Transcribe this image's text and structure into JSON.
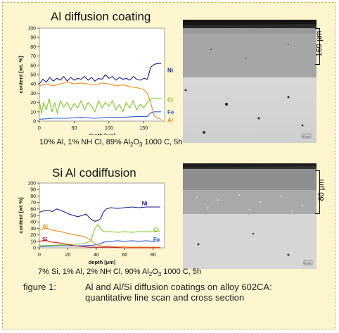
{
  "panels": [
    {
      "title": "Al diffusion coating",
      "caption": {
        "before": "10% Al, 1% NH Cl, 89% Al",
        "sub1": "2",
        "mid": "O",
        "sub2": "3",
        "after": " 1000 C, 5h"
      },
      "micrograph": {
        "thickness_label": "160 µm",
        "scale_label": "50 µm"
      },
      "chart_data": {
        "type": "line",
        "xlabel": "depth [µm]",
        "ylabel": "content [wt. %]",
        "xlim": [
          0,
          180
        ],
        "ylim": [
          0,
          100
        ],
        "x_ticks": [
          0,
          50,
          100,
          150
        ],
        "y_ticks": [
          0,
          10,
          20,
          30,
          40,
          50,
          60,
          70,
          80,
          90,
          100
        ],
        "series": [
          {
            "name": "Ni",
            "color": "#1a1a8c",
            "points": [
              [
                0,
                40
              ],
              [
                5,
                45
              ],
              [
                10,
                42
              ],
              [
                15,
                47
              ],
              [
                20,
                43
              ],
              [
                25,
                46
              ],
              [
                30,
                44
              ],
              [
                35,
                48
              ],
              [
                40,
                43
              ],
              [
                45,
                47
              ],
              [
                50,
                44
              ],
              [
                55,
                46
              ],
              [
                60,
                45
              ],
              [
                65,
                48
              ],
              [
                70,
                44
              ],
              [
                75,
                47
              ],
              [
                80,
                43
              ],
              [
                85,
                46
              ],
              [
                90,
                45
              ],
              [
                95,
                50
              ],
              [
                100,
                46
              ],
              [
                105,
                48
              ],
              [
                110,
                44
              ],
              [
                115,
                47
              ],
              [
                120,
                45
              ],
              [
                125,
                46
              ],
              [
                130,
                44
              ],
              [
                135,
                48
              ],
              [
                140,
                45
              ],
              [
                145,
                44
              ],
              [
                150,
                46
              ],
              [
                155,
                45
              ],
              [
                158,
                52
              ],
              [
                160,
                58
              ],
              [
                165,
                61
              ],
              [
                170,
                62
              ],
              [
                175,
                62
              ]
            ]
          },
          {
            "name": "Cr",
            "color": "#7ec820",
            "points": [
              [
                0,
                22
              ],
              [
                3,
                8
              ],
              [
                6,
                20
              ],
              [
                10,
                12
              ],
              [
                14,
                24
              ],
              [
                18,
                10
              ],
              [
                22,
                20
              ],
              [
                26,
                8
              ],
              [
                30,
                22
              ],
              [
                35,
                15
              ],
              [
                40,
                20
              ],
              [
                45,
                12
              ],
              [
                50,
                19
              ],
              [
                55,
                14
              ],
              [
                60,
                22
              ],
              [
                65,
                12
              ],
              [
                70,
                20
              ],
              [
                75,
                16
              ],
              [
                80,
                10
              ],
              [
                85,
                22
              ],
              [
                90,
                14
              ],
              [
                95,
                20
              ],
              [
                100,
                16
              ],
              [
                105,
                22
              ],
              [
                110,
                12
              ],
              [
                115,
                18
              ],
              [
                120,
                10
              ],
              [
                125,
                20
              ],
              [
                130,
                14
              ],
              [
                135,
                22
              ],
              [
                140,
                12
              ],
              [
                145,
                18
              ],
              [
                150,
                14
              ],
              [
                155,
                20
              ],
              [
                160,
                24
              ],
              [
                165,
                25
              ],
              [
                170,
                24
              ],
              [
                175,
                25
              ]
            ]
          },
          {
            "name": "Fe",
            "color": "#2f5fd0",
            "points": [
              [
                0,
                2
              ],
              [
                20,
                3
              ],
              [
                40,
                3
              ],
              [
                60,
                4
              ],
              [
                80,
                3
              ],
              [
                100,
                4
              ],
              [
                120,
                4
              ],
              [
                140,
                5
              ],
              [
                155,
                5
              ],
              [
                160,
                9
              ],
              [
                165,
                10
              ],
              [
                170,
                10
              ],
              [
                175,
                10
              ]
            ]
          },
          {
            "name": "Al",
            "color": "#f08a1c",
            "points": [
              [
                0,
                38
              ],
              [
                10,
                40
              ],
              [
                20,
                38
              ],
              [
                30,
                40
              ],
              [
                40,
                42
              ],
              [
                50,
                40
              ],
              [
                60,
                41
              ],
              [
                70,
                40
              ],
              [
                80,
                39
              ],
              [
                90,
                41
              ],
              [
                100,
                40
              ],
              [
                110,
                38
              ],
              [
                120,
                39
              ],
              [
                130,
                37
              ],
              [
                140,
                36
              ],
              [
                150,
                34
              ],
              [
                155,
                30
              ],
              [
                160,
                20
              ],
              [
                165,
                6
              ],
              [
                170,
                3
              ],
              [
                175,
                2
              ]
            ]
          }
        ]
      }
    },
    {
      "title": "Si Al codiffusion",
      "caption": {
        "before": "7% Si, 1% Al, 2% NH Cl, 90% Al",
        "sub1": "2",
        "mid": "O",
        "sub2": "3",
        "after": " 1000 C, 5h"
      },
      "micrograph": {
        "thickness_label": "80 µm",
        "scale_label": "20 µm"
      },
      "chart_data": {
        "type": "line",
        "xlabel": "depth [µm]",
        "ylabel": "content [wt %]",
        "xlim": [
          0,
          88
        ],
        "ylim": [
          0,
          100
        ],
        "x_ticks": [
          0,
          20,
          40,
          60,
          80
        ],
        "y_ticks": [
          0,
          10,
          20,
          30,
          40,
          50,
          60,
          70,
          80,
          90,
          100
        ],
        "series": [
          {
            "name": "Ni",
            "color": "#1a1a8c",
            "points": [
              [
                0,
                55
              ],
              [
                3,
                57
              ],
              [
                6,
                58
              ],
              [
                9,
                56
              ],
              [
                12,
                60
              ],
              [
                15,
                58
              ],
              [
                18,
                55
              ],
              [
                21,
                52
              ],
              [
                24,
                50
              ],
              [
                27,
                48
              ],
              [
                30,
                50
              ],
              [
                33,
                52
              ],
              [
                35,
                47
              ],
              [
                37,
                43
              ],
              [
                39,
                41
              ],
              [
                41,
                42
              ],
              [
                43,
                45
              ],
              [
                45,
                55
              ],
              [
                47,
                60
              ],
              [
                50,
                62
              ],
              [
                55,
                61
              ],
              [
                60,
                62
              ],
              [
                65,
                63
              ],
              [
                70,
                62
              ],
              [
                75,
                63
              ],
              [
                80,
                63
              ],
              [
                85,
                63
              ]
            ]
          },
          {
            "name": "Cr",
            "color": "#7ec820",
            "points": [
              [
                0,
                3
              ],
              [
                10,
                4
              ],
              [
                20,
                5
              ],
              [
                30,
                6
              ],
              [
                36,
                10
              ],
              [
                39,
                30
              ],
              [
                41,
                36
              ],
              [
                43,
                30
              ],
              [
                45,
                25
              ],
              [
                50,
                25
              ],
              [
                55,
                24
              ],
              [
                60,
                25
              ],
              [
                65,
                24
              ],
              [
                70,
                25
              ],
              [
                75,
                25
              ],
              [
                80,
                25
              ],
              [
                85,
                25
              ]
            ]
          },
          {
            "name": "Fe",
            "color": "#2f5fd0",
            "points": [
              [
                0,
                2
              ],
              [
                15,
                3
              ],
              [
                30,
                3
              ],
              [
                38,
                4
              ],
              [
                42,
                6
              ],
              [
                46,
                9
              ],
              [
                50,
                10
              ],
              [
                55,
                11
              ],
              [
                60,
                10
              ],
              [
                65,
                11
              ],
              [
                70,
                10
              ],
              [
                75,
                11
              ],
              [
                80,
                10
              ],
              [
                85,
                11
              ]
            ]
          },
          {
            "name": "Al",
            "color": "#f08a1c",
            "points": [
              [
                0,
                28
              ],
              [
                5,
                30
              ],
              [
                10,
                27
              ],
              [
                15,
                25
              ],
              [
                20,
                22
              ],
              [
                25,
                20
              ],
              [
                30,
                18
              ],
              [
                33,
                16
              ],
              [
                36,
                12
              ],
              [
                38,
                8
              ],
              [
                40,
                5
              ],
              [
                43,
                3
              ],
              [
                48,
                2
              ],
              [
                55,
                2
              ],
              [
                65,
                1
              ],
              [
                75,
                1
              ],
              [
                85,
                1
              ]
            ]
          },
          {
            "name": "Si",
            "color": "#c81b1b",
            "points": [
              [
                0,
                10
              ],
              [
                4,
                12
              ],
              [
                8,
                9
              ],
              [
                12,
                8
              ],
              [
                16,
                7
              ],
              [
                20,
                5
              ],
              [
                25,
                3
              ],
              [
                30,
                2
              ],
              [
                35,
                1
              ],
              [
                40,
                1
              ],
              [
                50,
                1
              ],
              [
                60,
                0
              ],
              [
                70,
                0
              ],
              [
                85,
                0
              ]
            ]
          }
        ]
      }
    }
  ],
  "figure_caption": {
    "label": "figure 1:",
    "line1": "Al and Al/Si diffusion coatings on alloy 602CA:",
    "line2": "quantitative line scan and cross section"
  }
}
